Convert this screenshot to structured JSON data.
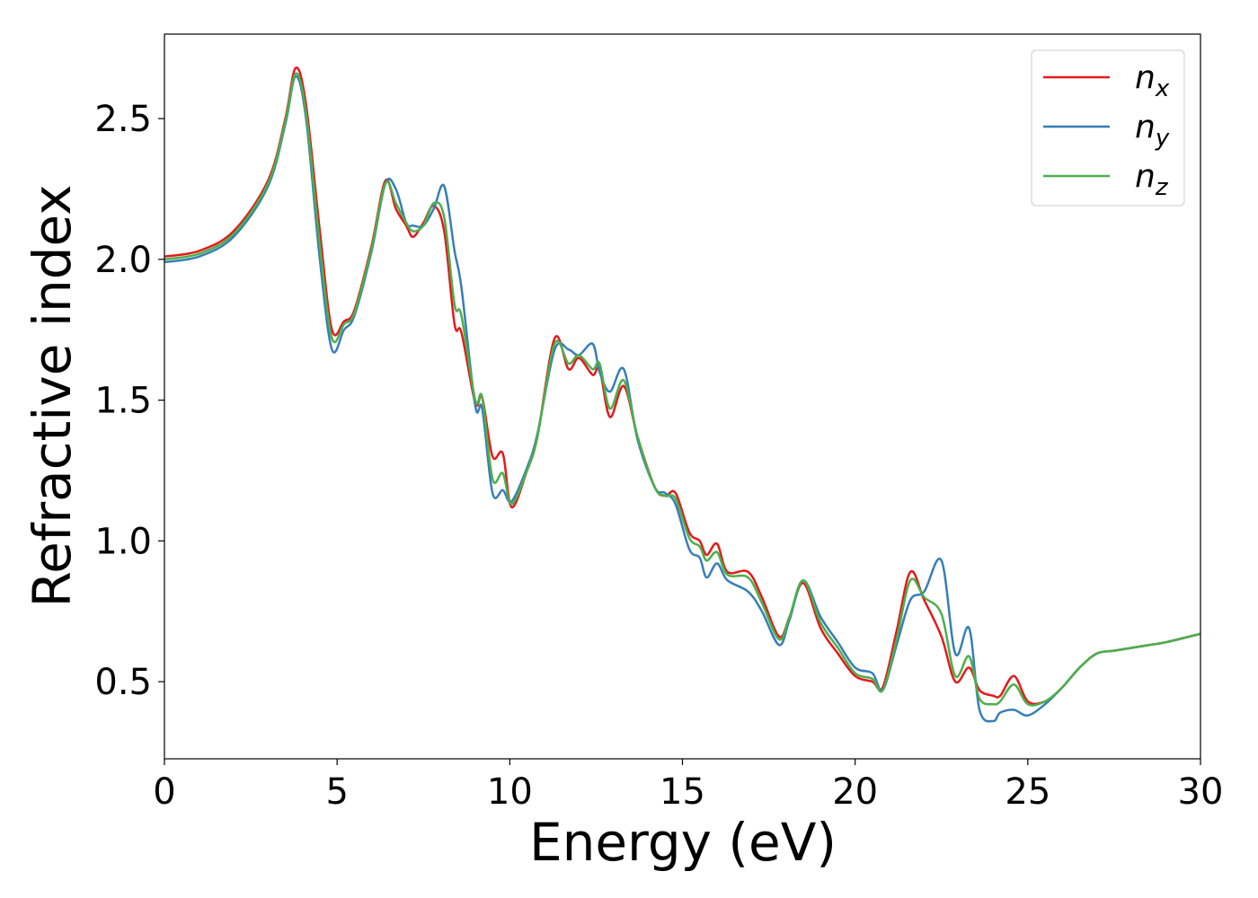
{
  "chart_data": {
    "type": "line",
    "xlabel": "Energy (eV)",
    "ylabel": "Refractive index",
    "xlim": [
      0,
      30
    ],
    "ylim": [
      0.226,
      2.8
    ],
    "xticks": [
      0,
      5,
      10,
      15,
      20,
      25,
      30
    ],
    "yticks": [
      0.5,
      {
        "value": 1.0,
        "label": "1.0"
      },
      1.5,
      {
        "value": 2.0,
        "label": "2.0"
      },
      2.5
    ],
    "grid": false,
    "legend": "upper right",
    "x": [
      0,
      1,
      2,
      3,
      3.5,
      3.8,
      4.1,
      4.5,
      4.85,
      5.2,
      5.5,
      6.0,
      6.4,
      6.7,
      7.0,
      7.2,
      7.5,
      7.8,
      8.1,
      8.4,
      8.6,
      9.0,
      9.2,
      9.5,
      9.8,
      10.05,
      10.5,
      10.8,
      11.3,
      11.7,
      12.0,
      12.4,
      12.6,
      12.9,
      13.3,
      13.7,
      14.2,
      14.5,
      14.8,
      15.2,
      15.5,
      15.7,
      16.0,
      16.3,
      16.9,
      17.3,
      17.8,
      18.1,
      18.5,
      19.0,
      19.5,
      20.0,
      20.5,
      20.8,
      21.2,
      21.6,
      22.0,
      22.5,
      22.9,
      23.3,
      23.6,
      24.0,
      24.2,
      24.6,
      25.0,
      25.5,
      26.0,
      26.5,
      27.0,
      27.5,
      28.0,
      28.5,
      29.0,
      30
    ],
    "series": [
      {
        "name": "nx",
        "color": "#e41a1c",
        "values": [
          2.01,
          2.03,
          2.1,
          2.28,
          2.5,
          2.68,
          2.55,
          2.1,
          1.75,
          1.78,
          1.82,
          2.05,
          2.28,
          2.18,
          2.12,
          2.08,
          2.13,
          2.19,
          2.1,
          1.77,
          1.74,
          1.49,
          1.51,
          1.3,
          1.31,
          1.12,
          1.25,
          1.37,
          1.72,
          1.61,
          1.65,
          1.59,
          1.61,
          1.44,
          1.55,
          1.37,
          1.19,
          1.16,
          1.17,
          1.03,
          1.0,
          0.95,
          0.99,
          0.89,
          0.89,
          0.8,
          0.66,
          0.73,
          0.85,
          0.69,
          0.6,
          0.52,
          0.5,
          0.48,
          0.68,
          0.89,
          0.79,
          0.66,
          0.5,
          0.55,
          0.47,
          0.45,
          0.45,
          0.52,
          0.43,
          0.43,
          0.48,
          0.55,
          0.6,
          0.61,
          0.62,
          0.63,
          0.64,
          0.67
        ]
      },
      {
        "name": "ny",
        "color": "#377eb8",
        "values": [
          1.99,
          2.01,
          2.08,
          2.26,
          2.48,
          2.65,
          2.5,
          2.0,
          1.68,
          1.75,
          1.8,
          2.03,
          2.27,
          2.25,
          2.13,
          2.12,
          2.12,
          2.18,
          2.26,
          2.03,
          1.9,
          1.48,
          1.47,
          1.17,
          1.18,
          1.14,
          1.26,
          1.38,
          1.68,
          1.68,
          1.66,
          1.7,
          1.6,
          1.53,
          1.61,
          1.36,
          1.19,
          1.17,
          1.13,
          0.97,
          0.94,
          0.87,
          0.92,
          0.86,
          0.82,
          0.75,
          0.63,
          0.72,
          0.86,
          0.73,
          0.64,
          0.55,
          0.53,
          0.47,
          0.63,
          0.79,
          0.82,
          0.93,
          0.6,
          0.69,
          0.4,
          0.36,
          0.39,
          0.4,
          0.38,
          0.42,
          0.48,
          0.55,
          0.6,
          0.61,
          0.62,
          0.63,
          0.64,
          0.67
        ]
      },
      {
        "name": "nz",
        "color": "#4daf4a",
        "values": [
          2.0,
          2.02,
          2.09,
          2.27,
          2.49,
          2.66,
          2.52,
          2.05,
          1.72,
          1.77,
          1.81,
          2.04,
          2.27,
          2.2,
          2.13,
          2.1,
          2.12,
          2.2,
          2.15,
          1.84,
          1.8,
          1.5,
          1.51,
          1.22,
          1.24,
          1.13,
          1.25,
          1.37,
          1.7,
          1.63,
          1.66,
          1.61,
          1.63,
          1.47,
          1.57,
          1.37,
          1.19,
          1.16,
          1.15,
          1.01,
          0.98,
          0.93,
          0.96,
          0.88,
          0.87,
          0.78,
          0.65,
          0.73,
          0.86,
          0.71,
          0.62,
          0.53,
          0.51,
          0.47,
          0.65,
          0.86,
          0.8,
          0.74,
          0.52,
          0.59,
          0.44,
          0.42,
          0.43,
          0.49,
          0.42,
          0.43,
          0.48,
          0.55,
          0.6,
          0.61,
          0.62,
          0.63,
          0.64,
          0.67
        ]
      }
    ]
  }
}
